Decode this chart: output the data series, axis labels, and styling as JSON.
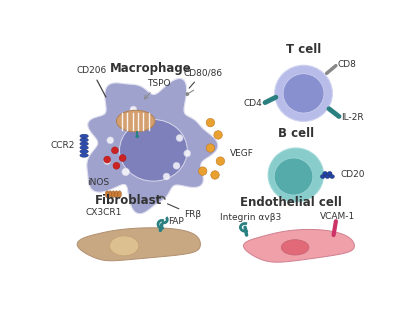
{
  "bg_color": "#ffffff",
  "macrophage": {
    "title": "Macrophage",
    "cell_color": "#9fa2cc",
    "nucleus_color": "#7a7db8",
    "mito_color": "#d4a070",
    "vesicle_color": "#e8a030",
    "inos_color": "#cc2222",
    "cx3cr1_color": "#c87830",
    "ccr2_color": "#2244aa"
  },
  "tcell": {
    "title": "T cell",
    "outer_color": "#b8bce8",
    "inner_color": "#8890d0"
  },
  "bcell": {
    "title": "B cell",
    "outer_color": "#88cccc",
    "inner_color": "#55aaaa"
  },
  "fibroblast": {
    "title": "Fibroblast",
    "cell_color": "#c8a882",
    "nucleus_color": "#ddc090"
  },
  "endothelial": {
    "title": "Endothelial cell",
    "cell_color": "#f0a0a8",
    "nucleus_color": "#e06070"
  },
  "marker_teal": "#2a8080",
  "marker_blue": "#2244aa",
  "marker_gray": "#888888",
  "marker_pink": "#cc3366",
  "text_color": "#333333",
  "title_fontsize": 8.5,
  "label_fontsize": 6.5
}
